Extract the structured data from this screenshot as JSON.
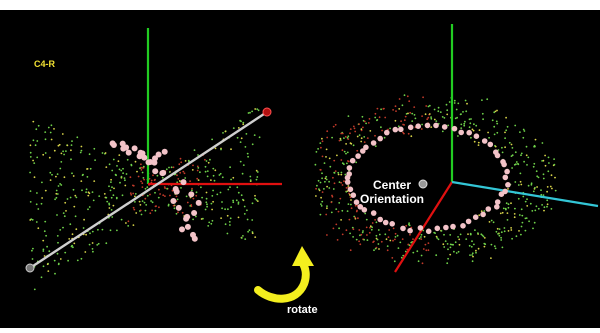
{
  "left_label": "C4-R",
  "center_label_line1": "Center",
  "center_label_line2": "Orientation",
  "rotate_label": "rotate",
  "colors": {
    "background": "#000000",
    "axis_green": "#22cc22",
    "axis_red": "#e01010",
    "axis_cyan": "#33c6d6",
    "rod": "#cfcfcf",
    "label_yellow": "#f2e233",
    "arrow_yellow": "#f4ef1e",
    "bead": "#f3c3c8",
    "point_green": "#6fd24a",
    "point_red": "#c23a2a",
    "point_yellow": "#d8d44a"
  },
  "icons": [
    "curved-rotate-arrow-icon",
    "pivot-sphere-icon"
  ]
}
